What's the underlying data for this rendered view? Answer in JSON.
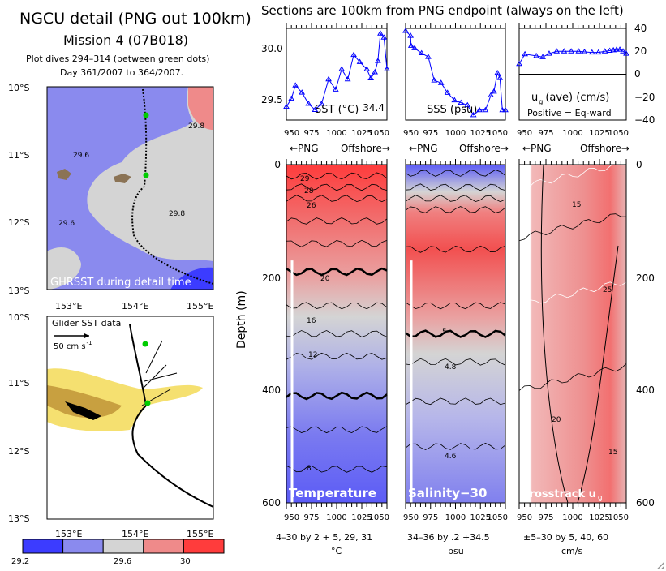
{
  "header": {
    "title": "NGCU detail (PNG out 100km)",
    "mission": "Mission 4 (07B018)",
    "dives": "Plot dives 294–314 (between green dots)",
    "days": "Day 361/2007 to 364/2007.",
    "sections_title": "Sections are 100km from PNG endpoint (always on the left)"
  },
  "colors": {
    "series": "#0000ff",
    "track": "#000000",
    "endpoint_dots": "#00cc00",
    "sst_bins": [
      "#3c3cff",
      "#8a8aee",
      "#d4d4d4",
      "#ef8a8a",
      "#ff3c3c"
    ]
  },
  "map_top": {
    "label": "GHRSST during detail time",
    "lat_labels": [
      "10°S",
      "11°S",
      "12°S",
      "13°S"
    ],
    "lon_labels": [
      "153°E",
      "154°E",
      "155°E"
    ],
    "contour_labels": [
      "29.6",
      "29.6",
      "29.8",
      "29.8"
    ]
  },
  "map_bottom": {
    "label": "Glider SST data",
    "scale_label": "50 cm s",
    "scale_exp": "-1",
    "lat_labels": [
      "10°S",
      "11°S",
      "12°S",
      "13°S"
    ],
    "lon_labels": [
      "153°E",
      "154°E",
      "155°E"
    ]
  },
  "colorbar": {
    "labels": [
      "29.2",
      "29.6",
      "30"
    ]
  },
  "direction_labels": {
    "left": "←PNG",
    "right": "Offshore→"
  },
  "chart_data": [
    {
      "type": "line",
      "label": "SST (°C)",
      "xlim": [
        950,
        1050
      ],
      "ylim": [
        29.3,
        30.2
      ],
      "xticks": [
        "950",
        "975",
        "1000",
        "1025",
        "1050"
      ],
      "yticks": [
        "29.5",
        "30.0"
      ],
      "x": [
        950,
        955,
        959,
        965.5,
        972,
        978.5,
        985,
        992,
        999,
        1005,
        1011,
        1017,
        1023,
        1030,
        1034,
        1038,
        1041,
        1043.5,
        1047,
        1050
      ],
      "y": [
        29.43,
        29.51,
        29.64,
        29.57,
        29.46,
        29.4,
        29.46,
        29.7,
        29.6,
        29.8,
        29.7,
        29.94,
        29.87,
        29.8,
        29.71,
        29.77,
        29.88,
        30.15,
        30.11,
        29.8
      ]
    },
    {
      "type": "line",
      "label": "SSS (psu)",
      "xlim": [
        950,
        1050
      ],
      "ylim": [
        34.33,
        34.7
      ],
      "xticks": [
        "950",
        "975",
        "1000",
        "1025",
        "1050"
      ],
      "yticks": [
        "34.4"
      ],
      "x": [
        950,
        955,
        955.5,
        959,
        966,
        972.7,
        978.7,
        985.5,
        992,
        999,
        1005.5,
        1012,
        1018,
        1024,
        1030,
        1035.5,
        1038.5,
        1042,
        1044.5,
        1047,
        1050
      ],
      "y": [
        34.69,
        34.67,
        34.63,
        34.62,
        34.6,
        34.585,
        34.49,
        34.48,
        34.44,
        34.41,
        34.4,
        34.39,
        34.35,
        34.37,
        34.37,
        34.43,
        34.445,
        34.52,
        34.5,
        34.37,
        34.37
      ]
    },
    {
      "type": "line",
      "label": "u",
      "label_sub": "g",
      "label_rest": "(ave) (cm/s)",
      "note": "Positive = Eq-ward",
      "xlim": [
        950,
        1050
      ],
      "ylim": [
        -40,
        40
      ],
      "xticks": [
        "950",
        "975",
        "1000",
        "1025",
        "1050"
      ],
      "yticks": [
        "40",
        "20",
        "0",
        "−20",
        "−40"
      ],
      "x": [
        950,
        955.4,
        966,
        972,
        978,
        985,
        992,
        998.6,
        1005.5,
        1011,
        1018,
        1024,
        1030,
        1034.6,
        1038,
        1041,
        1044,
        1047,
        1050
      ],
      "y": [
        9,
        17.5,
        16,
        15,
        18,
        20,
        20,
        20,
        20,
        19.5,
        19,
        19,
        20,
        20.5,
        21,
        21.5,
        21.5,
        20,
        18
      ]
    },
    {
      "type": "heatmap",
      "label": "Temperature",
      "ylabel": "Depth (m)",
      "xlim": [
        950,
        1050
      ],
      "ylim": [
        600,
        0
      ],
      "yticks": [
        "0",
        "200",
        "400",
        "600"
      ],
      "xticks": [
        "950",
        "975",
        "1000",
        "1025",
        "1050"
      ],
      "contour_labels": [
        "29",
        "28",
        "26",
        "20",
        "16",
        "12",
        "8"
      ],
      "contours": "4–30 by 2 + 5, 29, 31",
      "units": "°C"
    },
    {
      "type": "heatmap",
      "label": "Salinity−30",
      "xlim": [
        950,
        1050
      ],
      "ylim": [
        600,
        0
      ],
      "xticks": [
        "950",
        "975",
        "1000",
        "1025",
        "1050"
      ],
      "contour_labels": [
        "5",
        "4.8",
        "4.6"
      ],
      "contours": "34–36 by .2 +34.5",
      "units": "psu"
    },
    {
      "type": "heatmap",
      "label": "Crosstrack u",
      "label_sub": "g",
      "xlim": [
        950,
        1050
      ],
      "ylim": [
        600,
        0
      ],
      "yticks": [
        "0",
        "200",
        "400",
        "600"
      ],
      "xticks": [
        "950",
        "975",
        "1000",
        "1025",
        "1050"
      ],
      "contour_labels": [
        "15",
        "25",
        "20",
        "15"
      ],
      "contours": "±5–30 by 5, 40, 60",
      "units": "cm/s"
    }
  ]
}
